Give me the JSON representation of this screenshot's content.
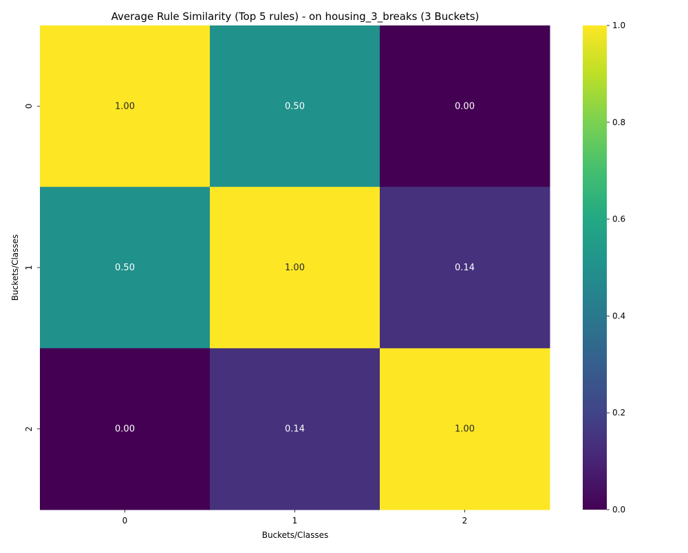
{
  "chart_data": {
    "type": "heatmap",
    "title": "Average Rule Similarity (Top 5 rules) - on housing_3_breaks (3 Buckets)",
    "xlabel": "Buckets/Classes",
    "ylabel": "Buckets/Classes",
    "x_categories": [
      "0",
      "1",
      "2"
    ],
    "y_categories": [
      "0",
      "1",
      "2"
    ],
    "values": [
      [
        1.0,
        0.5,
        0.0
      ],
      [
        0.5,
        1.0,
        0.14
      ],
      [
        0.0,
        0.14,
        1.0
      ]
    ],
    "annotations": [
      [
        "1.00",
        "0.50",
        "0.00"
      ],
      [
        "0.50",
        "1.00",
        "0.14"
      ],
      [
        "0.00",
        "0.14",
        "1.00"
      ]
    ],
    "colormap": "viridis",
    "vmin": 0.0,
    "vmax": 1.0,
    "colorbar_ticks": [
      "0.0",
      "0.2",
      "0.4",
      "0.6",
      "0.8",
      "1.0"
    ],
    "colorbar_tick_values": [
      0.0,
      0.2,
      0.4,
      0.6,
      0.8,
      1.0
    ],
    "grid": false,
    "legend": "colorbar-right"
  }
}
